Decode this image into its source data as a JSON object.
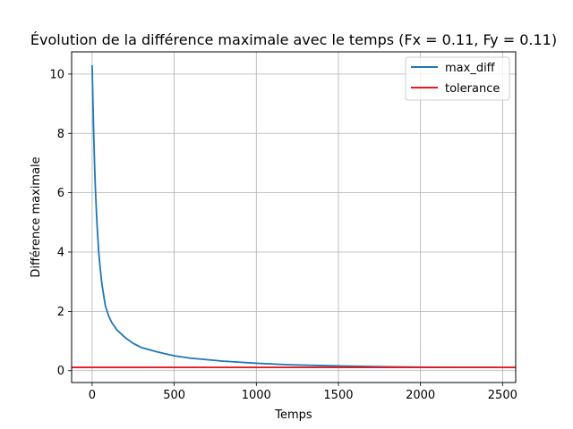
{
  "chart_data": {
    "type": "line",
    "title": "Évolution de la différence maximale avec le temps (Fx = 0.11, Fy = 0.11)",
    "xlabel": "Temps",
    "ylabel": "Différence maximale",
    "xlim": [
      -125,
      2580
    ],
    "ylim": [
      -0.4,
      10.75
    ],
    "xticks": [
      0,
      500,
      1000,
      1500,
      2000,
      2500
    ],
    "yticks": [
      0,
      2,
      4,
      6,
      8,
      10
    ],
    "grid": true,
    "legend_position": "top-right",
    "series": [
      {
        "name": "max_diff",
        "color": "#1f77b4",
        "x": [
          0,
          5,
          10,
          15,
          20,
          30,
          40,
          50,
          60,
          80,
          100,
          120,
          150,
          200,
          250,
          300,
          400,
          500,
          600,
          800,
          1000,
          1200,
          1500,
          1800,
          2000,
          2200,
          2460
        ],
        "y": [
          10.3,
          9.0,
          7.9,
          6.9,
          6.1,
          4.9,
          4.0,
          3.4,
          2.9,
          2.2,
          1.85,
          1.62,
          1.38,
          1.12,
          0.92,
          0.78,
          0.63,
          0.5,
          0.42,
          0.32,
          0.25,
          0.2,
          0.16,
          0.13,
          0.12,
          0.11,
          0.11
        ]
      },
      {
        "name": "tolerance",
        "color": "#e41a1c",
        "x": [
          -125,
          2580
        ],
        "y": [
          0.11,
          0.11
        ]
      }
    ]
  }
}
